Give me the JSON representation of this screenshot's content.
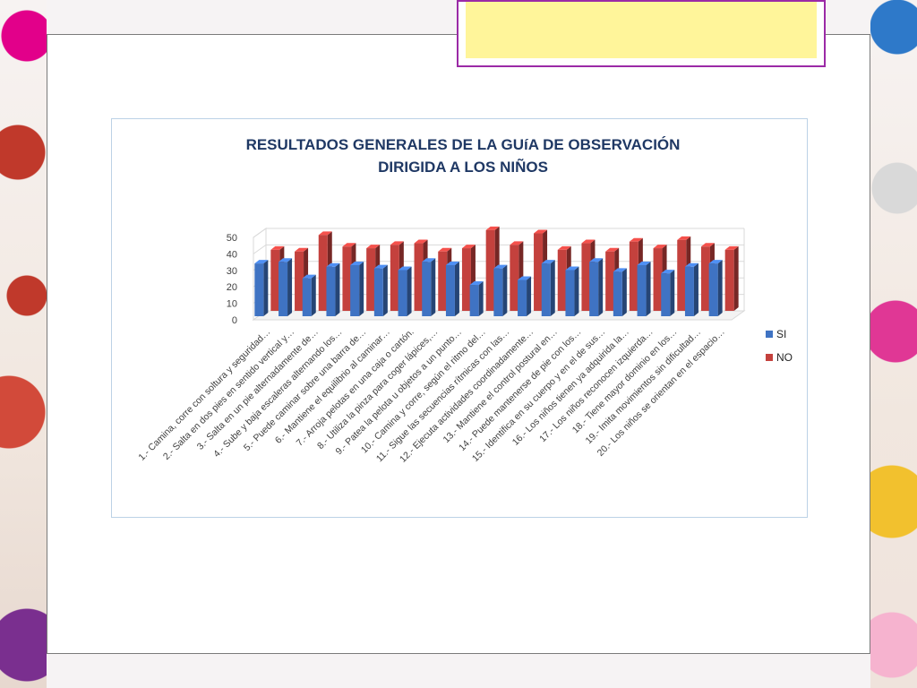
{
  "chart_data": {
    "type": "bar",
    "title": "RESULTADOS GENERALES DE LA GUíA DE OBSERVACIÓN",
    "subtitle": "DIRIGIDA A LOS NIÑOS",
    "ylim": [
      0,
      50
    ],
    "yticks": [
      "0",
      "10",
      "20",
      "30",
      "40",
      "50"
    ],
    "grid": true,
    "legend_position": "right",
    "categories": [
      "1.- Camina, corre con soltura y seguridad…",
      "2.- Salta en dos pies en sentido vertical  y…",
      "3.- Salta en un pie alternadamente de…",
      "4.- Sube y baja escaleras alternando los…",
      "5.- Puede caminar sobre una barra de…",
      "6.- Mantiene el equilibrio al caminar…",
      "7.- Arroja pelotas en una caja o cartón.",
      "8.- Utiliza la pinza para coger lápices,…",
      "9.- Patea la pelota u objetos a un punto…",
      "10.- Camina y corre, según el ritmo del…",
      "11.- Sigue las secuencias rítmicas con las…",
      "12.- Ejecuta actividades coordinadamente…",
      "13.- Mantiene el control postural en…",
      "14.- Puede mantenerse de pie con los…",
      "15.- Identifica en su cuerpo y en el de sus…",
      "16.- Los niños tienen ya adquirida la…",
      "17.- Los niños reconocen izquierda…",
      "18.- Tiene mayor dominio en los…",
      "19.- Imita movimientos sin dificultad…",
      "20.- Los niños se orientan en el espacio…"
    ],
    "series": [
      {
        "name": "SI",
        "color": "#3f73c3",
        "values": [
          32,
          33,
          23,
          30,
          31,
          29,
          28,
          33,
          31,
          19,
          29,
          22,
          32,
          28,
          33,
          27,
          31,
          26,
          30,
          32
        ]
      },
      {
        "name": "NO",
        "color": "#c4413d",
        "values": [
          37,
          36,
          46,
          39,
          38,
          40,
          41,
          36,
          38,
          49,
          40,
          47,
          37,
          41,
          36,
          42,
          38,
          43,
          39,
          37
        ]
      }
    ],
    "colors": {
      "si": "#3f73c3",
      "no": "#c4413d",
      "grid": "#d9d9d9",
      "title": "#1f3864"
    }
  }
}
